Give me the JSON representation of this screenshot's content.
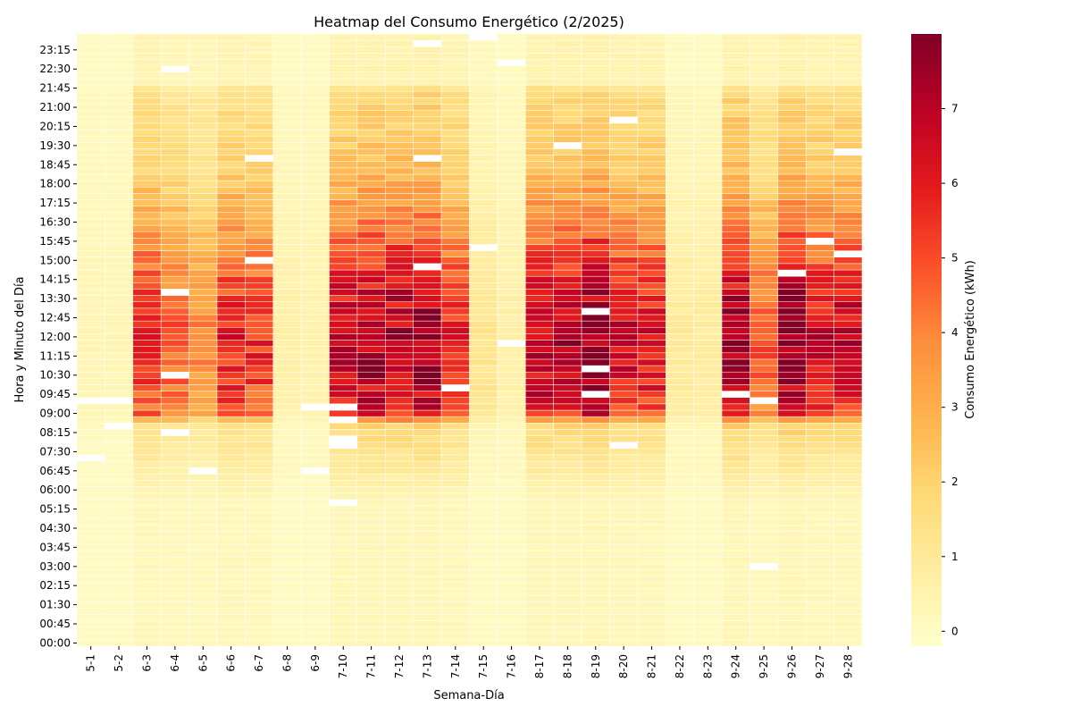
{
  "chart_data": {
    "type": "heatmap",
    "title": "Heatmap del Consumo Energético (2/2025)",
    "xlabel": "Semana-Día",
    "ylabel": "Hora y Minuto del Día",
    "colorbar_label": "Consumo Energético (kWh)",
    "colorbar_ticks": [
      0,
      1,
      2,
      3,
      4,
      5,
      6,
      7
    ],
    "value_range": [
      -0.2,
      8.0
    ],
    "colormap": "YlOrRd",
    "colormap_stops": [
      "#ffffcc",
      "#ffeda0",
      "#fed976",
      "#feb24c",
      "#fd8d3c",
      "#fc4e2a",
      "#e31a1c",
      "#bd0026",
      "#800026"
    ],
    "missing_color": "#ffffff",
    "x_categories": [
      "5-1",
      "5-2",
      "6-3",
      "6-4",
      "6-5",
      "6-6",
      "6-7",
      "6-8",
      "6-9",
      "7-10",
      "7-11",
      "7-12",
      "7-13",
      "7-14",
      "7-15",
      "7-16",
      "8-17",
      "8-18",
      "8-19",
      "8-20",
      "8-21",
      "8-22",
      "8-23",
      "9-24",
      "9-25",
      "9-26",
      "9-27",
      "9-28"
    ],
    "y_tick_labels": [
      "00:00",
      "00:45",
      "01:30",
      "02:15",
      "03:00",
      "03:45",
      "04:30",
      "05:15",
      "06:00",
      "06:45",
      "07:30",
      "08:15",
      "09:00",
      "09:45",
      "10:30",
      "11:15",
      "12:00",
      "12:45",
      "13:30",
      "14:15",
      "15:00",
      "15:45",
      "16:30",
      "17:15",
      "18:00",
      "18:45",
      "19:30",
      "20:15",
      "21:00",
      "21:45",
      "22:30",
      "23:15"
    ],
    "time_slots_per_day": 96,
    "peak_values_kwh": [
      0.3,
      0.3,
      5.6,
      4.6,
      3.8,
      5.8,
      5.5,
      0.6,
      0.5,
      6.8,
      7.4,
      7.2,
      7.5,
      5.8,
      1.2,
      0.6,
      7.0,
      7.0,
      7.8,
      6.4,
      6.2,
      0.9,
      0.8,
      7.6,
      4.8,
      7.9,
      6.4,
      6.6
    ],
    "missing_cells": [
      [
        0,
        38
      ],
      [
        0,
        29
      ],
      [
        1,
        38
      ],
      [
        1,
        34
      ],
      [
        3,
        90
      ],
      [
        3,
        55
      ],
      [
        3,
        42
      ],
      [
        3,
        33
      ],
      [
        4,
        27
      ],
      [
        6,
        76
      ],
      [
        6,
        60
      ],
      [
        8,
        37
      ],
      [
        8,
        27
      ],
      [
        9,
        37
      ],
      [
        9,
        35
      ],
      [
        9,
        32
      ],
      [
        9,
        31
      ],
      [
        9,
        22
      ],
      [
        12,
        94
      ],
      [
        12,
        76
      ],
      [
        12,
        59
      ],
      [
        13,
        40
      ],
      [
        14,
        95
      ],
      [
        14,
        62
      ],
      [
        15,
        91
      ],
      [
        15,
        47
      ],
      [
        17,
        78
      ],
      [
        18,
        52
      ],
      [
        18,
        43
      ],
      [
        18,
        39
      ],
      [
        19,
        82
      ],
      [
        19,
        31
      ],
      [
        23,
        39
      ],
      [
        24,
        38
      ],
      [
        24,
        12
      ],
      [
        25,
        58
      ],
      [
        26,
        63
      ],
      [
        27,
        77
      ],
      [
        27,
        61
      ]
    ]
  }
}
